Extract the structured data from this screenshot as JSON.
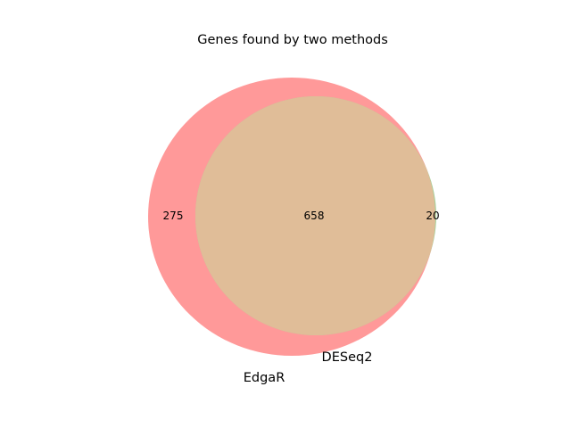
{
  "title": "Genes found by two methods",
  "colors": {
    "set_a": "#ff9999",
    "set_b": "#a0d09a",
    "overlap": "#e0bd98"
  },
  "chart_data": {
    "type": "venn",
    "title": "Genes found by two methods",
    "sets": [
      {
        "name": "EdgaR",
        "only_count": "275"
      },
      {
        "name": "DESeq2",
        "only_count": "20"
      }
    ],
    "intersection_count": "658"
  }
}
